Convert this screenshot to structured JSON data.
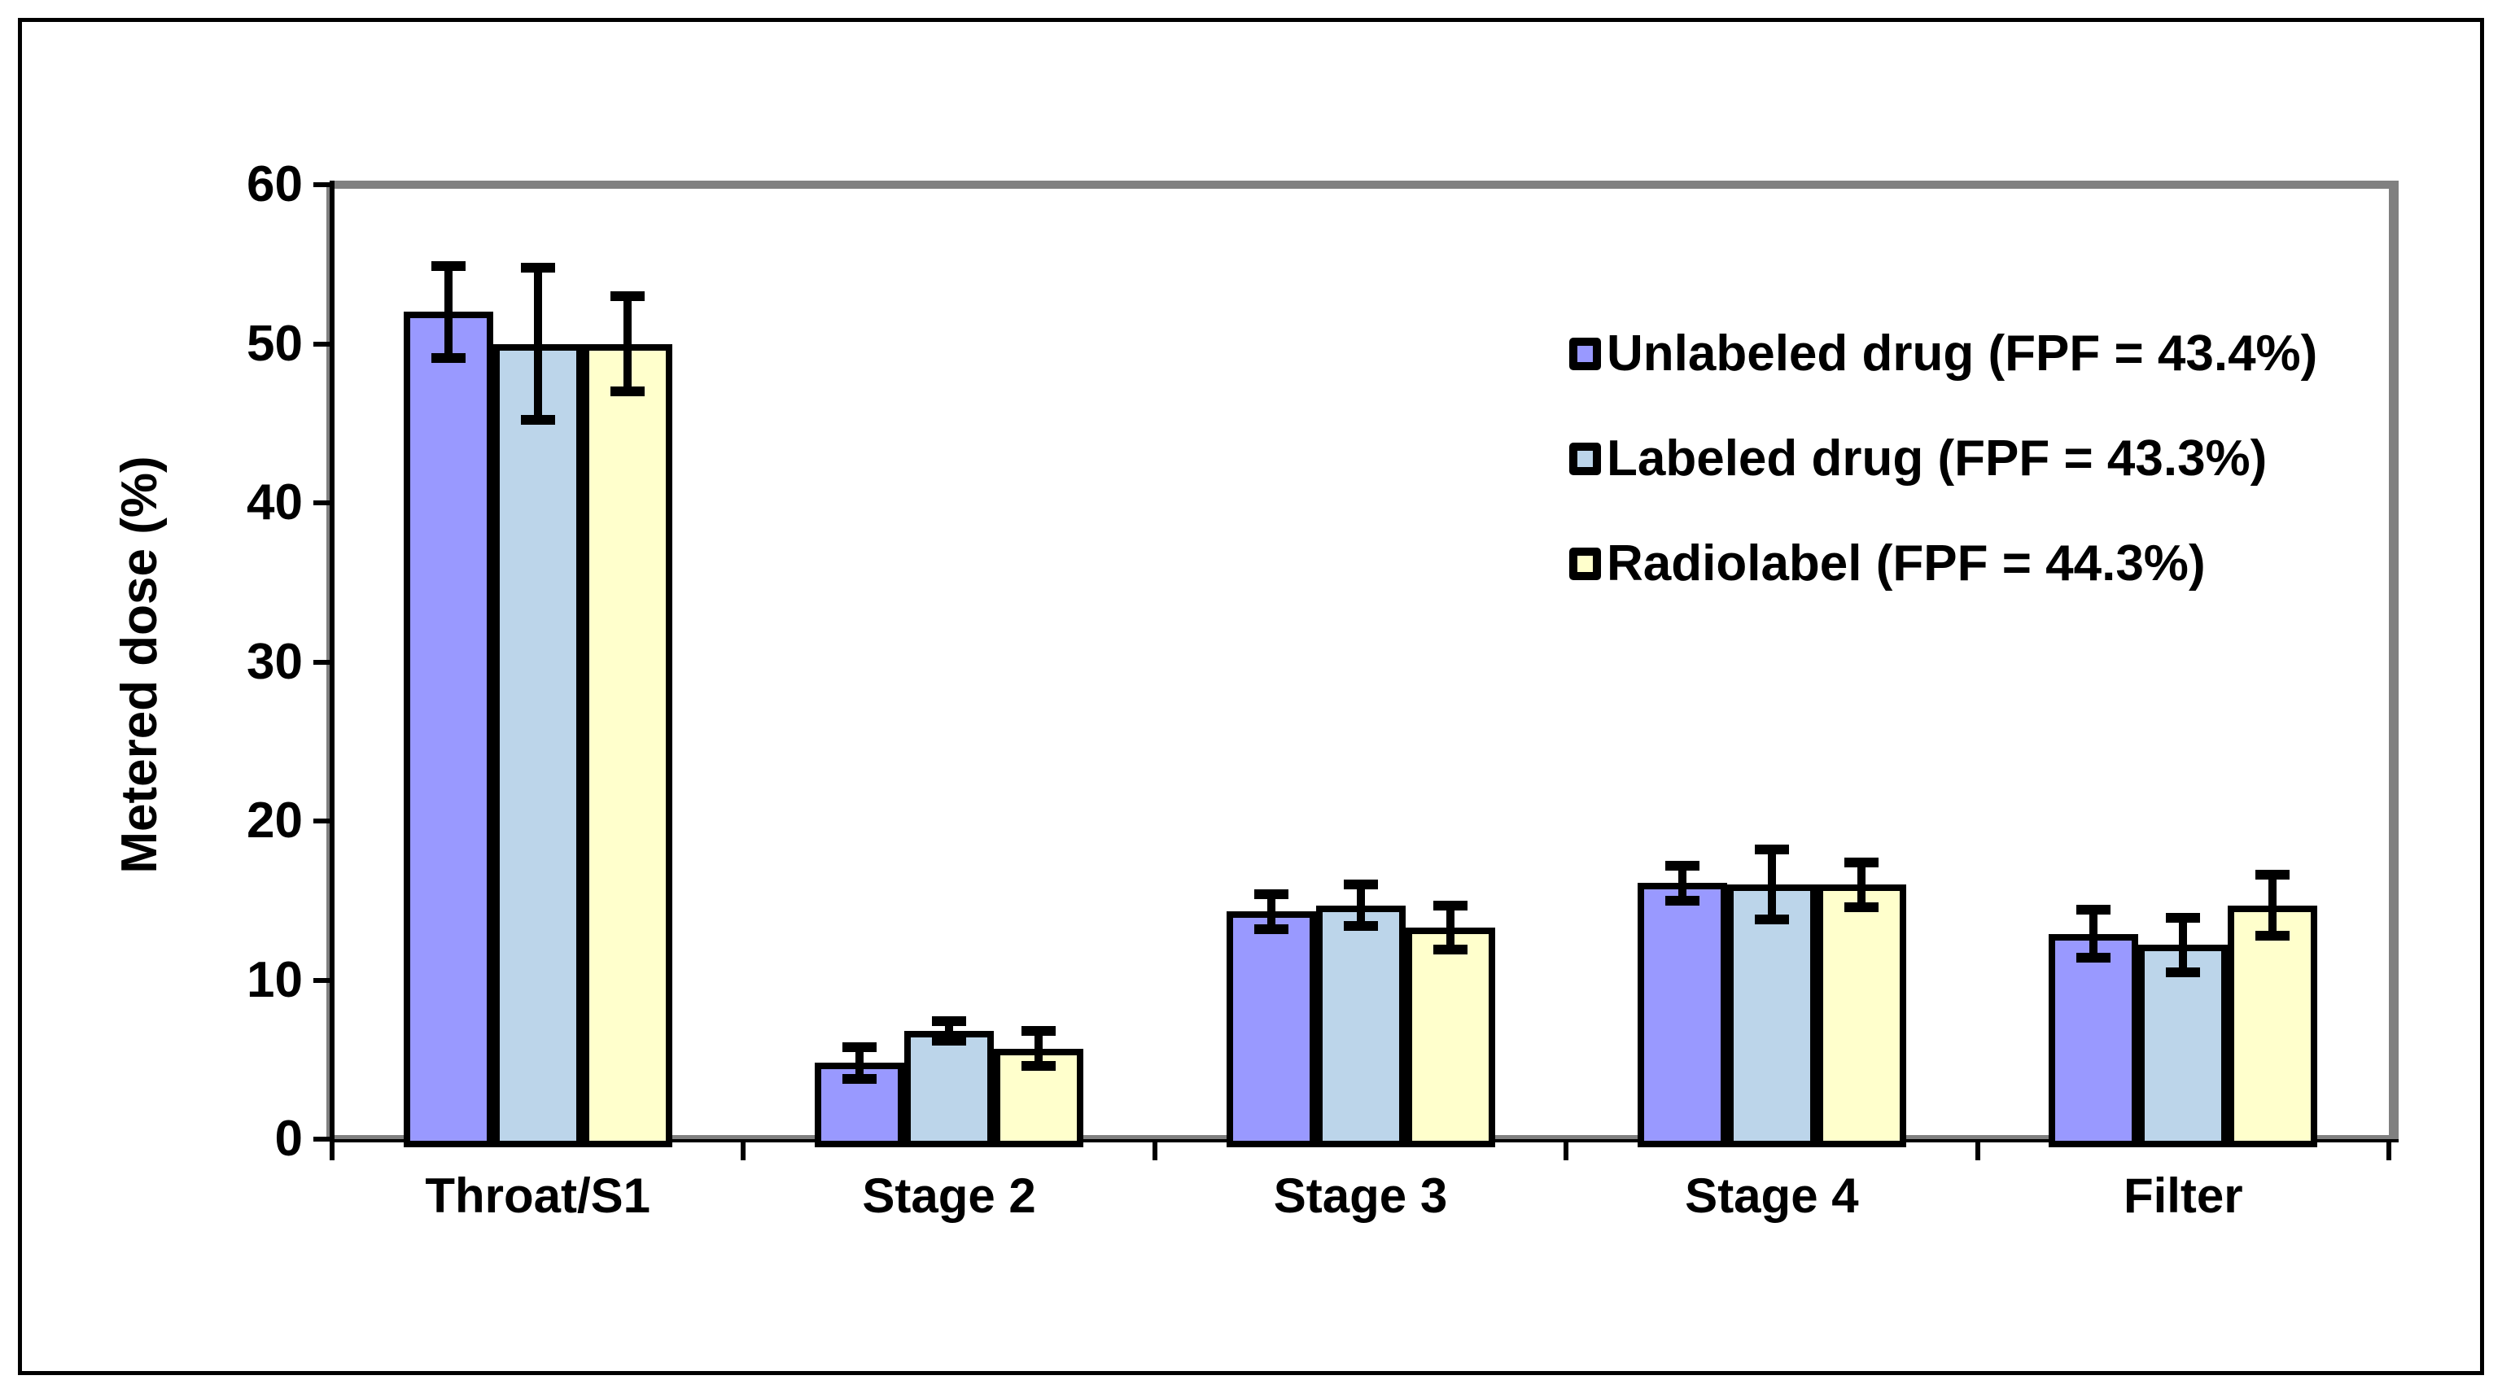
{
  "figure": {
    "background": "#FFFFFF",
    "border_color": "#000000",
    "axis_color": "#000000",
    "frame_shadow_color": "#808080"
  },
  "chart_data": {
    "type": "bar",
    "title": "",
    "ylabel": "Metered dose (%)",
    "xlabel": "",
    "ylim": [
      0,
      60
    ],
    "ytick_step": 10,
    "yticks": [
      "0",
      "10",
      "20",
      "30",
      "40",
      "50",
      "60"
    ],
    "grid": false,
    "error_bars": true,
    "legend_position": "inside-upper-right",
    "categories": [
      "Throat/S1",
      "Stage 2",
      "Stage 3",
      "Stage 4",
      "Filter"
    ],
    "series": [
      {
        "name": "Unlabeled drug (FPF = 43.4%)",
        "color": "#9999FF",
        "values": [
          52.0,
          4.8,
          14.3,
          16.1,
          12.9
        ],
        "errors": [
          2.9,
          1.0,
          1.1,
          1.1,
          1.5
        ]
      },
      {
        "name": "Labeled drug (FPF = 43.3%)",
        "color": "#BCD5EA",
        "values": [
          50.0,
          6.8,
          14.7,
          16.0,
          12.2
        ],
        "errors": [
          4.8,
          0.6,
          1.3,
          2.2,
          1.7
        ]
      },
      {
        "name": "Radiolabel (FPF = 44.3%)",
        "color": "#FFFFCC",
        "values": [
          50.0,
          5.7,
          13.3,
          16.0,
          14.7
        ],
        "errors": [
          3.0,
          1.1,
          1.4,
          1.4,
          1.9
        ]
      }
    ]
  }
}
